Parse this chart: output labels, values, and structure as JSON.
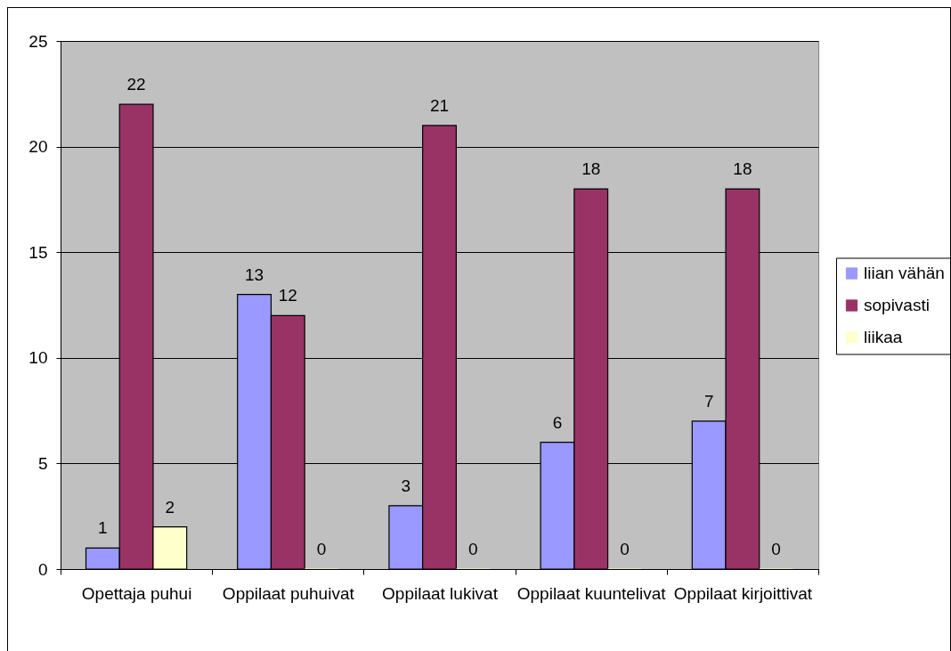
{
  "chart_data": {
    "type": "bar",
    "categories": [
      "Opettaja puhui",
      "Oppilaat puhuivat",
      "Oppilaat lukivat",
      "Oppilaat kuuntelivat",
      "Oppilaat kirjoittivat"
    ],
    "series": [
      {
        "name": "liian vähän",
        "color": "#9999ff",
        "values": [
          1,
          13,
          3,
          6,
          7
        ]
      },
      {
        "name": "sopivasti",
        "color": "#993366",
        "values": [
          22,
          12,
          21,
          18,
          18
        ]
      },
      {
        "name": "liikaa",
        "color": "#ffffcc",
        "values": [
          2,
          0,
          0,
          0,
          0
        ]
      }
    ],
    "ylim": [
      0,
      25
    ],
    "yticks": [
      0,
      5,
      10,
      15,
      20,
      25
    ],
    "grid": "y",
    "legend": "right",
    "data_labels": true
  }
}
